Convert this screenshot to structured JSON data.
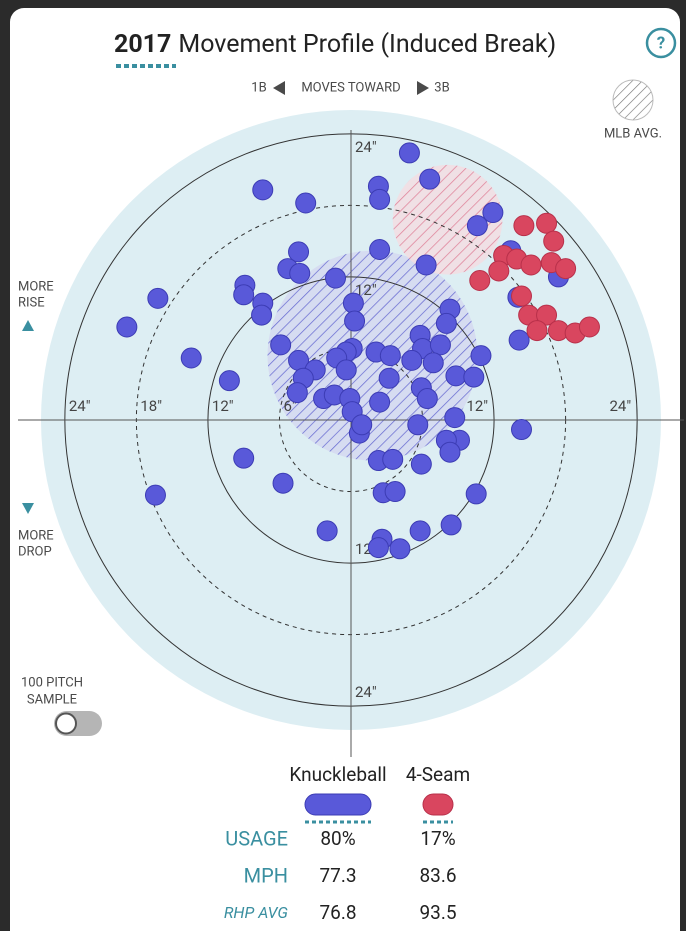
{
  "chart_data": {
    "type": "scatter",
    "title_year": "2017",
    "title": "Movement Profile (Induced Break)",
    "help": "?",
    "direction": {
      "left": "1B",
      "middle": "MOVES TOWARD",
      "right": "3B"
    },
    "rise_label": [
      "MORE",
      "RISE"
    ],
    "drop_label": [
      "MORE",
      "DROP"
    ],
    "mlb_avg_label": "MLB AVG.",
    "sample_label": [
      "100 PITCH",
      "SAMPLE"
    ],
    "rlim": [
      0,
      26
    ],
    "rticks": [
      {
        "value": 6,
        "label": "6\""
      },
      {
        "value": 12,
        "label": "12\""
      },
      {
        "value": 18,
        "label": "18\""
      },
      {
        "value": 24,
        "label": "24\""
      }
    ],
    "series": [
      {
        "name": "Knuckleball",
        "color": "#5959d9",
        "mlb_avg": {
          "x": 1.8,
          "y": 5.4,
          "r": 8.8
        },
        "x": [
          4.9,
          2.3,
          6.6,
          2.4,
          -7.4,
          -3.8,
          11.9,
          10.6,
          13.4,
          2.4,
          -4.4,
          -5.3,
          -4.3,
          -1.3,
          6.3,
          -8.9,
          -9.0,
          -16.2,
          -7.4,
          -7.5,
          -18.8,
          0.2,
          8.3,
          8.0,
          14.0,
          17.4,
          -5.9,
          0.3,
          5.8,
          6.0,
          7.5,
          6.9,
          10.9,
          0.1,
          -0.4,
          2.1,
          3.3,
          -4.4,
          -3.0,
          -4.0,
          -13.4,
          -10.2,
          -1.2,
          -0.4,
          -2.3,
          -4.5,
          -1.4,
          -0.1,
          3.2,
          5.9,
          6.4,
          8.8,
          10.3,
          14.1,
          0.1,
          2.4,
          5.1,
          5.6,
          8.7,
          9.1,
          8.0,
          8.3,
          0.7,
          0.9,
          2.3,
          3.5,
          5.9,
          14.3,
          -9.0,
          -5.7,
          -16.4,
          2.7,
          3.7,
          10.5,
          8.4,
          5.8,
          -2.0,
          2.6,
          2.3,
          4.1
        ],
        "y": [
          22.4,
          19.6,
          20.2,
          18.5,
          19.3,
          18.2,
          17.4,
          16.3,
          14.2,
          14.3,
          14.1,
          12.7,
          12.3,
          11.9,
          13.0,
          11.3,
          10.5,
          10.2,
          9.8,
          8.8,
          7.8,
          9.8,
          9.3,
          8.1,
          10.3,
          12.0,
          6.3,
          8.3,
          7.1,
          6.0,
          6.3,
          4.8,
          5.4,
          6.0,
          5.7,
          5.7,
          5.4,
          5.0,
          4.2,
          3.5,
          5.2,
          3.3,
          5.2,
          4.2,
          1.8,
          2.3,
          2.1,
          1.8,
          3.5,
          2.7,
          1.8,
          3.7,
          3.6,
          6.7,
          0.7,
          1.5,
          5.0,
          -0.4,
          0.2,
          -1.7,
          -1.7,
          -2.7,
          -1.1,
          -0.4,
          -3.4,
          -3.3,
          -3.7,
          -0.8,
          -3.2,
          -5.3,
          -6.3,
          -6.1,
          -6.0,
          -6.2,
          -8.8,
          -9.3,
          -9.3,
          -10.0,
          -10.7,
          -10.8
        ]
      },
      {
        "name": "4-Seam",
        "color": "#d9465f",
        "mlb_avg": {
          "x": 8.1,
          "y": 16.8,
          "r": 4.6
        },
        "x": [
          14.5,
          16.4,
          17.0,
          12.8,
          13.9,
          15.1,
          16.8,
          18.0,
          12.4,
          10.8,
          14.3,
          14.9,
          16.4,
          15.6,
          17.4,
          18.8,
          20.0
        ],
        "y": [
          16.3,
          16.5,
          15.0,
          13.8,
          13.5,
          13.0,
          13.2,
          12.7,
          12.5,
          11.7,
          10.4,
          8.8,
          8.8,
          7.5,
          7.5,
          7.3,
          7.8
        ]
      }
    ],
    "table": {
      "rows": [
        {
          "label": "USAGE",
          "values": [
            "80%",
            "17%"
          ]
        },
        {
          "label": "MPH",
          "values": [
            "77.3",
            "83.6"
          ]
        },
        {
          "label": "RHP AVG",
          "values": [
            "76.8",
            "93.5"
          ]
        }
      ]
    }
  }
}
